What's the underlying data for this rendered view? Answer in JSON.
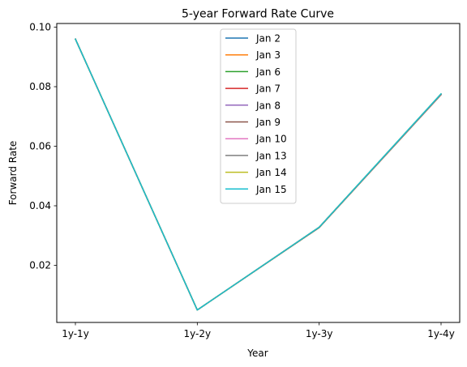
{
  "chart_data": {
    "type": "line",
    "title": "5-year Forward Rate Curve",
    "xlabel": "Year",
    "ylabel": "Forward Rate",
    "categories": [
      "1y-1y",
      "1y-2y",
      "1y-3y",
      "1y-4y"
    ],
    "ylim": [
      0.0,
      0.1
    ],
    "yticks": [
      0.02,
      0.04,
      0.06,
      0.08,
      0.1
    ],
    "ytick_labels": [
      "0.02",
      "0.04",
      "0.06",
      "0.08",
      "0.10"
    ],
    "grid": false,
    "legend_position": "top-center",
    "series": [
      {
        "name": "Jan 2",
        "color": "#1f77b4",
        "values": [
          0.096,
          0.005,
          0.0327,
          0.0773
        ]
      },
      {
        "name": "Jan 3",
        "color": "#ff7f0e",
        "values": [
          0.096,
          0.005,
          0.0327,
          0.0773
        ]
      },
      {
        "name": "Jan 6",
        "color": "#2ca02c",
        "values": [
          0.096,
          0.005,
          0.0327,
          0.0774
        ]
      },
      {
        "name": "Jan 7",
        "color": "#d62728",
        "values": [
          0.096,
          0.005,
          0.0327,
          0.0774
        ]
      },
      {
        "name": "Jan 8",
        "color": "#9467bd",
        "values": [
          0.096,
          0.005,
          0.0328,
          0.0774
        ]
      },
      {
        "name": "Jan 9",
        "color": "#8c564b",
        "values": [
          0.096,
          0.005,
          0.0328,
          0.0775
        ]
      },
      {
        "name": "Jan 10",
        "color": "#e377c2",
        "values": [
          0.096,
          0.005,
          0.0328,
          0.0775
        ]
      },
      {
        "name": "Jan 13",
        "color": "#7f7f7f",
        "values": [
          0.096,
          0.005,
          0.0328,
          0.0775
        ]
      },
      {
        "name": "Jan 14",
        "color": "#bcbd22",
        "values": [
          0.096,
          0.005,
          0.0328,
          0.0776
        ]
      },
      {
        "name": "Jan 15",
        "color": "#17becf",
        "values": [
          0.096,
          0.005,
          0.0328,
          0.0776
        ]
      }
    ]
  }
}
